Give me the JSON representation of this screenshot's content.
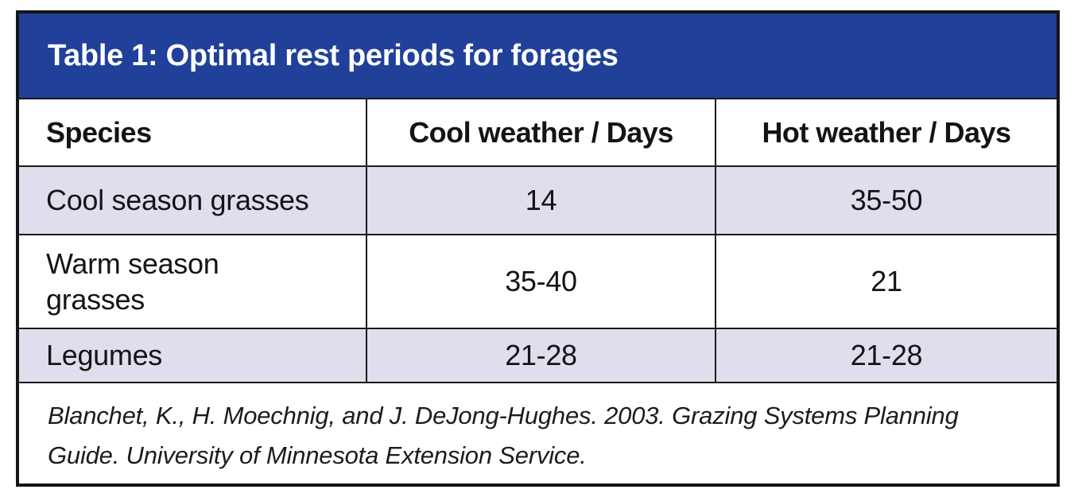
{
  "colors": {
    "title_bar_blue": "#20409a",
    "shaded_row_lavender": "#e0deed",
    "grid_line": "#1a1a1a",
    "outer_border": "#141414",
    "title_text": "#ffffff",
    "body_text": "#141414"
  },
  "table": {
    "title": "Table 1: Optimal rest periods for forages",
    "columns": [
      "Species",
      "Cool weather / Days",
      "Hot weather / Days"
    ],
    "rows": [
      {
        "cells": [
          "Cool season grasses",
          "14",
          "35-50"
        ]
      },
      {
        "cells": [
          "Warm season grasses",
          "35-40",
          "21"
        ]
      },
      {
        "cells": [
          "Legumes",
          "21-28",
          "21-28"
        ]
      }
    ],
    "citation_lines": [
      "Blanchet, K., H. Moechnig, and J. DeJong-Hughes. 2003. Grazing Systems Planning",
      "Guide. University of Minnesota Extension Service."
    ]
  }
}
